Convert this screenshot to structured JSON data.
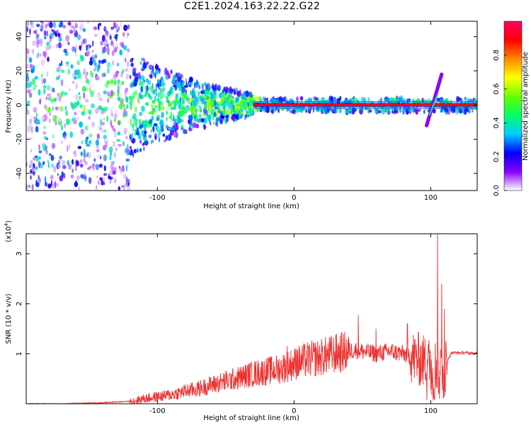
{
  "title": "C2E1.2024.163.22.22.G22",
  "colors": {
    "snr_line": "#ee3333",
    "spectro_center_line": "#3344dd",
    "frame": "#000000"
  },
  "chart_data": [
    {
      "type": "heatmap",
      "xlabel": "Height of straight line (km)",
      "ylabel": "Frequency (Hz)",
      "xlim": [
        -196,
        134
      ],
      "ylim": [
        -50,
        49
      ],
      "xticks": [
        -100,
        0,
        100
      ],
      "xtick_labels": [
        "-100",
        "0",
        "100"
      ],
      "yticks": [
        -40,
        -20,
        0,
        20,
        40
      ],
      "ytick_labels": [
        "-40",
        "-20",
        "0",
        "20",
        "40"
      ],
      "colorbar": {
        "label": "Normalized spectral amplitude",
        "range": [
          0,
          1
        ],
        "ticks": [
          0.0,
          0.2,
          0.4,
          0.6,
          0.8
        ],
        "tick_labels": [
          "0.0",
          "0.2",
          "0.4",
          "0.6",
          "0.8"
        ],
        "colormap": [
          "#ffffff",
          "#8800ff",
          "#0000ff",
          "#00ccff",
          "#00ff66",
          "#66ff00",
          "#ffff00",
          "#ff8800",
          "#ff0000",
          "#ff0066"
        ]
      },
      "features": {
        "line_frequency_hz": 0,
        "line_start_km": -30,
        "line_end_km": 134,
        "sloped_segment_km": [
          97,
          108
        ],
        "sloped_segment_hz": [
          -12,
          18
        ],
        "diffuse_region_km": [
          -196,
          -120
        ]
      }
    },
    {
      "type": "line",
      "xlabel": "Height of straight line (km)",
      "ylabel": "SNR (10 * v/v)",
      "y_multiplier": "(x10",
      "y_multiplier_exp": "4",
      "y_multiplier_close": ")",
      "xlim": [
        -196,
        134
      ],
      "ylim": [
        0,
        3.4
      ],
      "xticks": [
        -100,
        0,
        100
      ],
      "xtick_labels": [
        "-100",
        "0",
        "100"
      ],
      "yticks": [
        1,
        2,
        3
      ],
      "ytick_labels": [
        "1",
        "2",
        "3"
      ],
      "series": [
        {
          "x": [
            -196,
            -170,
            -140,
            -120,
            -110,
            -100,
            -90,
            -80,
            -70,
            -60,
            -50,
            -40,
            -30,
            -20,
            -10,
            0,
            10,
            20,
            30,
            40,
            45,
            50,
            60,
            70,
            80,
            85,
            90,
            95,
            100,
            105,
            110,
            115,
            120,
            125,
            134
          ],
          "y": [
            0.0,
            0.0,
            0.02,
            0.05,
            0.1,
            0.14,
            0.18,
            0.25,
            0.3,
            0.38,
            0.45,
            0.52,
            0.6,
            0.65,
            0.7,
            0.8,
            0.88,
            0.93,
            1.0,
            1.05,
            1.08,
            1.05,
            1.0,
            1.05,
            1.0,
            0.95,
            0.9,
            0.85,
            0.8,
            0.75,
            0.7,
            1.02,
            1.02,
            1.02,
            1.0
          ]
        }
      ],
      "peaks": [
        {
          "x": 105,
          "y": 3.4
        },
        {
          "x": 108,
          "y": 2.4
        },
        {
          "x": 110,
          "y": 1.9
        },
        {
          "x": 102,
          "y": 2.0
        },
        {
          "x": 47,
          "y": 1.78
        },
        {
          "x": 60,
          "y": 1.5
        },
        {
          "x": 83,
          "y": 1.6
        },
        {
          "x": 2,
          "y": 1.1
        },
        {
          "x": -5,
          "y": 1.15
        }
      ]
    }
  ]
}
